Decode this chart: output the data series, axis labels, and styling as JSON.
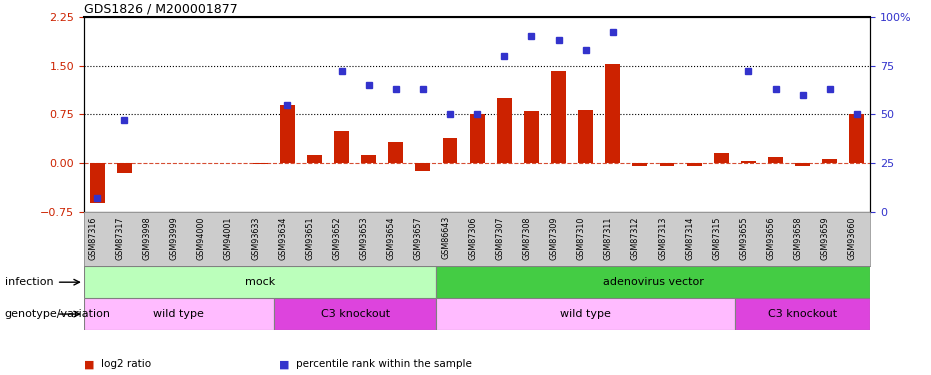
{
  "title": "GDS1826 / M200001877",
  "samples": [
    "GSM87316",
    "GSM87317",
    "GSM93998",
    "GSM93999",
    "GSM94000",
    "GSM94001",
    "GSM93633",
    "GSM93634",
    "GSM93651",
    "GSM93652",
    "GSM93653",
    "GSM93654",
    "GSM93657",
    "GSM86643",
    "GSM87306",
    "GSM87307",
    "GSM87308",
    "GSM87309",
    "GSM87310",
    "GSM87311",
    "GSM87312",
    "GSM87313",
    "GSM87314",
    "GSM87315",
    "GSM93655",
    "GSM93656",
    "GSM93658",
    "GSM93659",
    "GSM93660"
  ],
  "log2_ratio": [
    -0.62,
    -0.15,
    0.0,
    0.0,
    0.0,
    0.0,
    -0.02,
    0.9,
    0.12,
    0.5,
    0.12,
    0.32,
    -0.12,
    0.38,
    0.75,
    1.0,
    0.8,
    1.42,
    0.82,
    1.52,
    -0.04,
    -0.04,
    -0.04,
    0.16,
    0.04,
    0.1,
    -0.04,
    0.07,
    0.75
  ],
  "percentile_pct": [
    7,
    47,
    null,
    null,
    null,
    null,
    null,
    55,
    null,
    72,
    65,
    63,
    63,
    50,
    50,
    80,
    90,
    88,
    83,
    92,
    null,
    null,
    null,
    null,
    72,
    63,
    60,
    63,
    50
  ],
  "ylim": [
    -0.75,
    2.25
  ],
  "yticks_left": [
    -0.75,
    0.0,
    0.75,
    1.5,
    2.25
  ],
  "yticks_right_pct": [
    0,
    25,
    50,
    75,
    100
  ],
  "hlines": [
    0.75,
    1.5
  ],
  "bar_color": "#cc2200",
  "dot_color": "#3333cc",
  "zero_line_color": "#cc2200",
  "infection_groups": [
    {
      "label": "mock",
      "start": 0,
      "end": 13,
      "color": "#bbffbb"
    },
    {
      "label": "adenovirus vector",
      "start": 13,
      "end": 29,
      "color": "#44cc44"
    }
  ],
  "genotype_groups": [
    {
      "label": "wild type",
      "start": 0,
      "end": 7,
      "color": "#ffbbff"
    },
    {
      "label": "C3 knockout",
      "start": 7,
      "end": 13,
      "color": "#dd44dd"
    },
    {
      "label": "wild type",
      "start": 13,
      "end": 24,
      "color": "#ffbbff"
    },
    {
      "label": "C3 knockout",
      "start": 24,
      "end": 29,
      "color": "#dd44dd"
    }
  ],
  "legend_items": [
    {
      "label": "log2 ratio",
      "color": "#cc2200",
      "marker": "s"
    },
    {
      "label": "percentile rank within the sample",
      "color": "#3333cc",
      "marker": "s"
    }
  ],
  "xtick_bg": "#cccccc",
  "label_infection": "infection",
  "label_genotype": "genotype/variation"
}
